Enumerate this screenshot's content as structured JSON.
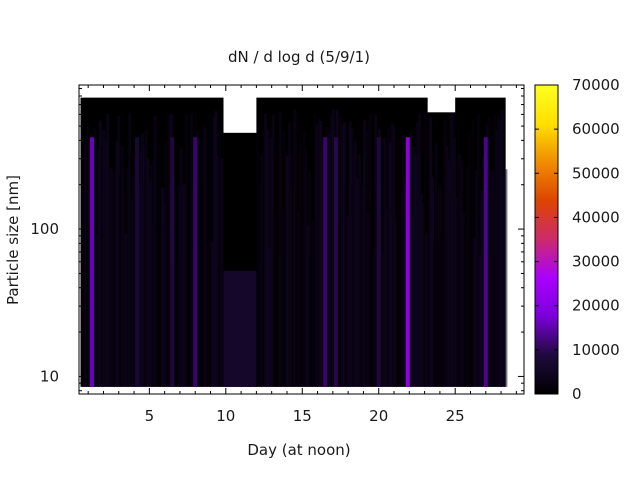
{
  "chart_data": {
    "type": "heatmap",
    "title": "dN / d log d (5/9/1)",
    "xlabel": "Day (at noon)",
    "ylabel": "Particle size [nm]",
    "x_range": [
      0.4,
      29.5
    ],
    "x_ticks": [
      5,
      10,
      15,
      20,
      25
    ],
    "y_scale": "log",
    "y_range": [
      7.6,
      950
    ],
    "y_ticks": [
      10,
      100
    ],
    "y_minor_ticks": [
      8,
      9,
      20,
      30,
      40,
      50,
      60,
      70,
      80,
      90,
      200,
      300,
      400,
      500,
      600,
      700,
      800,
      900
    ],
    "colorbar": {
      "range": [
        0,
        70000
      ],
      "ticks": [
        0,
        10000,
        20000,
        30000,
        40000,
        50000,
        60000,
        70000
      ],
      "colormap": [
        "#000000",
        "#1e0a3c",
        "#7a00d8",
        "#aa00ff",
        "#cc2b6b",
        "#dd4400",
        "#f08c00",
        "#ffe000",
        "#ffff20"
      ]
    },
    "data_extent": {
      "x": [
        0.5,
        28.3
      ],
      "y_min": 8.5,
      "y_max": 780
    },
    "gaps": [
      {
        "x": [
          9.85,
          12.0
        ],
        "y_above": 450,
        "fill_below_y": 52,
        "fill_value": 6000
      },
      {
        "x": [
          23.2,
          25.0
        ],
        "y_above": 620
      }
    ],
    "enhanced_bands": [
      {
        "x": 1.25,
        "value": 17000
      },
      {
        "x": 4.2,
        "value": 8000
      },
      {
        "x": 6.5,
        "value": 9000
      },
      {
        "x": 8.0,
        "value": 12000
      },
      {
        "x": 16.5,
        "value": 12000
      },
      {
        "x": 17.2,
        "value": 10000
      },
      {
        "x": 20.0,
        "value": 9000
      },
      {
        "x": 21.9,
        "value": 24000
      },
      {
        "x": 27.0,
        "value": 14000
      }
    ],
    "grid": false
  }
}
